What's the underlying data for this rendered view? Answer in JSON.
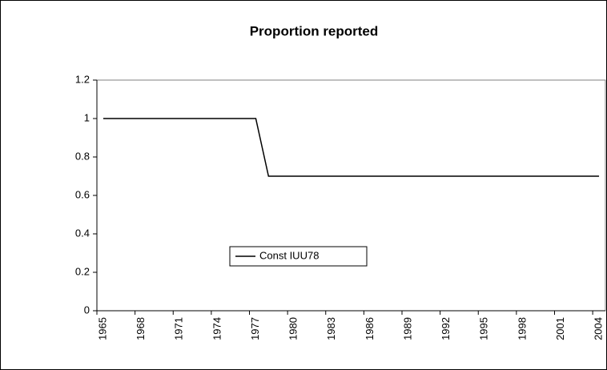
{
  "chart_data": {
    "type": "line",
    "title": "Proportion reported",
    "categories": [
      "1965",
      null,
      null,
      "1968",
      null,
      null,
      "1971",
      null,
      null,
      "1974",
      null,
      null,
      "1977",
      null,
      null,
      "1980",
      null,
      null,
      "1983",
      null,
      null,
      "1986",
      null,
      null,
      "1989",
      null,
      null,
      "1992",
      null,
      null,
      "1995",
      null,
      null,
      "1998",
      null,
      null,
      "2001",
      null,
      null,
      "2004"
    ],
    "series": [
      {
        "name": "Const IUU78",
        "color": "#000000",
        "values": [
          1,
          1,
          1,
          1,
          1,
          1,
          1,
          1,
          1,
          1,
          1,
          1,
          1,
          0.7,
          0.7,
          0.7,
          0.7,
          0.7,
          0.7,
          0.7,
          0.7,
          0.7,
          0.7,
          0.7,
          0.7,
          0.7,
          0.7,
          0.7,
          0.7,
          0.7,
          0.7,
          0.7,
          0.7,
          0.7,
          0.7,
          0.7,
          0.7,
          0.7,
          0.7,
          0.7
        ]
      }
    ],
    "ylim": [
      0,
      1.2
    ],
    "yticks": [
      0,
      0.2,
      0.4,
      0.6,
      0.8,
      1,
      1.2
    ],
    "grid": false,
    "legend": "center"
  }
}
